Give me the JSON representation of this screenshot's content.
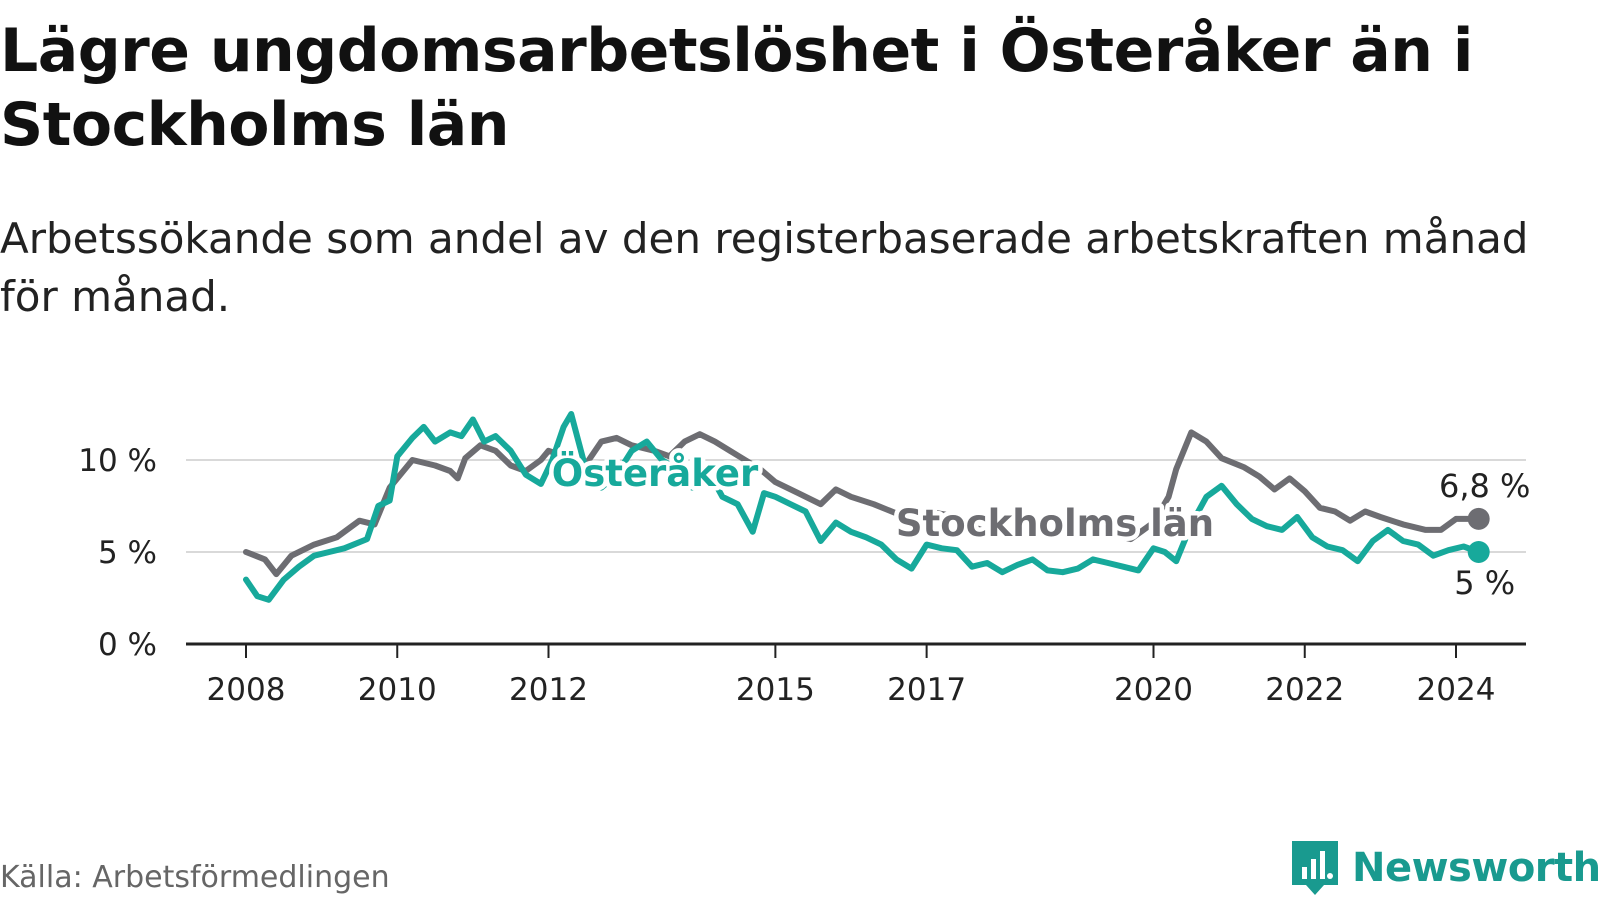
{
  "title": "Lägre ungdomsarbetslöshet i Österåker än i Stockholms län",
  "subtitle": "Arbetssökande som andel av den registerbaserade arbetskraften månad för månad.",
  "source": "Källa: Arbetsförmedlingen",
  "brand": "Newsworthy",
  "colors": {
    "osteraker": "#17a99b",
    "stockholm": "#6d6d72",
    "grid": "#d9d9d9",
    "axis": "#222222"
  },
  "chart_data": {
    "type": "line",
    "title": "Lägre ungdomsarbetslöshet i Österåker än i Stockholms län",
    "xlabel": "",
    "ylabel": "",
    "xlim": [
      2007.6,
      2025.0
    ],
    "ylim": [
      0,
      11
    ],
    "y_ticks": [
      {
        "value": 0,
        "label": "0 %"
      },
      {
        "value": 5,
        "label": "5 %"
      },
      {
        "value": 10,
        "label": "10 %"
      }
    ],
    "x_ticks": [
      {
        "value": 2008,
        "label": "2008"
      },
      {
        "value": 2010,
        "label": "2010"
      },
      {
        "value": 2012,
        "label": "2012"
      },
      {
        "value": 2015,
        "label": "2015"
      },
      {
        "value": 2017,
        "label": "2017"
      },
      {
        "value": 2020,
        "label": "2020"
      },
      {
        "value": 2022,
        "label": "2022"
      },
      {
        "value": 2024,
        "label": "2024"
      }
    ],
    "grid": true,
    "series": [
      {
        "name": "Stockholms län",
        "color": "#6d6d72",
        "end_label": "6,8 %",
        "points": [
          [
            2008.0,
            5.0
          ],
          [
            2008.25,
            4.6
          ],
          [
            2008.4,
            3.8
          ],
          [
            2008.6,
            4.8
          ],
          [
            2008.9,
            5.4
          ],
          [
            2009.2,
            5.8
          ],
          [
            2009.5,
            6.7
          ],
          [
            2009.7,
            6.5
          ],
          [
            2009.9,
            8.5
          ],
          [
            2010.2,
            10.0
          ],
          [
            2010.5,
            9.7
          ],
          [
            2010.7,
            9.4
          ],
          [
            2010.8,
            9.0
          ],
          [
            2010.9,
            10.1
          ],
          [
            2011.1,
            10.8
          ],
          [
            2011.3,
            10.5
          ],
          [
            2011.5,
            9.7
          ],
          [
            2011.7,
            9.4
          ],
          [
            2011.9,
            10.0
          ],
          [
            2012.0,
            10.5
          ],
          [
            2012.3,
            10.1
          ],
          [
            2012.5,
            9.8
          ],
          [
            2012.7,
            11.0
          ],
          [
            2012.9,
            11.2
          ],
          [
            2013.1,
            10.8
          ],
          [
            2013.4,
            10.5
          ],
          [
            2013.6,
            10.2
          ],
          [
            2013.8,
            11.0
          ],
          [
            2014.0,
            11.4
          ],
          [
            2014.2,
            11.0
          ],
          [
            2014.4,
            10.5
          ],
          [
            2014.6,
            10.0
          ],
          [
            2014.8,
            9.5
          ],
          [
            2015.0,
            8.8
          ],
          [
            2015.3,
            8.2
          ],
          [
            2015.6,
            7.6
          ],
          [
            2015.8,
            8.4
          ],
          [
            2016.0,
            8.0
          ],
          [
            2016.3,
            7.6
          ],
          [
            2016.6,
            7.1
          ],
          [
            2016.8,
            6.7
          ],
          [
            2017.0,
            7.2
          ],
          [
            2017.3,
            7.0
          ],
          [
            2017.6,
            6.4
          ],
          [
            2017.9,
            5.9
          ],
          [
            2018.2,
            6.0
          ],
          [
            2018.5,
            6.1
          ],
          [
            2018.8,
            6.2
          ],
          [
            2019.1,
            6.1
          ],
          [
            2019.4,
            6.0
          ],
          [
            2019.7,
            5.7
          ],
          [
            2020.0,
            6.6
          ],
          [
            2020.2,
            8.0
          ],
          [
            2020.3,
            9.5
          ],
          [
            2020.5,
            11.5
          ],
          [
            2020.7,
            11.0
          ],
          [
            2020.9,
            10.1
          ],
          [
            2021.2,
            9.6
          ],
          [
            2021.4,
            9.1
          ],
          [
            2021.6,
            8.4
          ],
          [
            2021.8,
            9.0
          ],
          [
            2022.0,
            8.3
          ],
          [
            2022.2,
            7.4
          ],
          [
            2022.4,
            7.2
          ],
          [
            2022.6,
            6.7
          ],
          [
            2022.8,
            7.2
          ],
          [
            2023.0,
            6.9
          ],
          [
            2023.3,
            6.5
          ],
          [
            2023.6,
            6.2
          ],
          [
            2023.8,
            6.2
          ],
          [
            2024.0,
            6.8
          ],
          [
            2024.3,
            6.8
          ]
        ]
      },
      {
        "name": "Österåker",
        "color": "#17a99b",
        "end_label": "5 %",
        "points": [
          [
            2008.0,
            3.5
          ],
          [
            2008.15,
            2.6
          ],
          [
            2008.3,
            2.4
          ],
          [
            2008.5,
            3.5
          ],
          [
            2008.7,
            4.2
          ],
          [
            2008.9,
            4.8
          ],
          [
            2009.1,
            5.0
          ],
          [
            2009.3,
            5.2
          ],
          [
            2009.6,
            5.7
          ],
          [
            2009.75,
            7.5
          ],
          [
            2009.9,
            7.8
          ],
          [
            2010.0,
            10.2
          ],
          [
            2010.2,
            11.2
          ],
          [
            2010.35,
            11.8
          ],
          [
            2010.5,
            11.0
          ],
          [
            2010.7,
            11.5
          ],
          [
            2010.85,
            11.3
          ],
          [
            2011.0,
            12.2
          ],
          [
            2011.15,
            11.0
          ],
          [
            2011.3,
            11.3
          ],
          [
            2011.5,
            10.5
          ],
          [
            2011.7,
            9.2
          ],
          [
            2011.9,
            8.7
          ],
          [
            2012.05,
            10.0
          ],
          [
            2012.2,
            11.8
          ],
          [
            2012.3,
            12.5
          ],
          [
            2012.5,
            9.4
          ],
          [
            2012.7,
            8.5
          ],
          [
            2012.9,
            9.2
          ],
          [
            2013.1,
            10.5
          ],
          [
            2013.3,
            11.0
          ],
          [
            2013.5,
            10.0
          ],
          [
            2013.7,
            9.5
          ],
          [
            2013.9,
            8.5
          ],
          [
            2014.1,
            9.5
          ],
          [
            2014.3,
            8.0
          ],
          [
            2014.5,
            7.6
          ],
          [
            2014.7,
            6.1
          ],
          [
            2014.85,
            8.2
          ],
          [
            2015.0,
            8.0
          ],
          [
            2015.2,
            7.6
          ],
          [
            2015.4,
            7.2
          ],
          [
            2015.6,
            5.6
          ],
          [
            2015.8,
            6.6
          ],
          [
            2016.0,
            6.1
          ],
          [
            2016.2,
            5.8
          ],
          [
            2016.4,
            5.4
          ],
          [
            2016.6,
            4.6
          ],
          [
            2016.8,
            4.1
          ],
          [
            2017.0,
            5.4
          ],
          [
            2017.2,
            5.2
          ],
          [
            2017.4,
            5.1
          ],
          [
            2017.6,
            4.2
          ],
          [
            2017.8,
            4.4
          ],
          [
            2018.0,
            3.9
          ],
          [
            2018.2,
            4.3
          ],
          [
            2018.4,
            4.6
          ],
          [
            2018.6,
            4.0
          ],
          [
            2018.8,
            3.9
          ],
          [
            2019.0,
            4.1
          ],
          [
            2019.2,
            4.6
          ],
          [
            2019.4,
            4.4
          ],
          [
            2019.6,
            4.2
          ],
          [
            2019.8,
            4.0
          ],
          [
            2020.0,
            5.2
          ],
          [
            2020.15,
            5.0
          ],
          [
            2020.3,
            4.5
          ],
          [
            2020.5,
            6.5
          ],
          [
            2020.7,
            8.0
          ],
          [
            2020.9,
            8.6
          ],
          [
            2021.1,
            7.6
          ],
          [
            2021.3,
            6.8
          ],
          [
            2021.5,
            6.4
          ],
          [
            2021.7,
            6.2
          ],
          [
            2021.9,
            6.9
          ],
          [
            2022.1,
            5.8
          ],
          [
            2022.3,
            5.3
          ],
          [
            2022.5,
            5.1
          ],
          [
            2022.7,
            4.5
          ],
          [
            2022.9,
            5.6
          ],
          [
            2023.1,
            6.2
          ],
          [
            2023.3,
            5.6
          ],
          [
            2023.5,
            5.4
          ],
          [
            2023.7,
            4.8
          ],
          [
            2023.9,
            5.1
          ],
          [
            2024.1,
            5.3
          ],
          [
            2024.3,
            5.0
          ]
        ]
      }
    ],
    "annotations": [
      {
        "text": "Österåker",
        "series": "Österåker"
      },
      {
        "text": "Stockholms län",
        "series": "Stockholms län"
      }
    ]
  }
}
